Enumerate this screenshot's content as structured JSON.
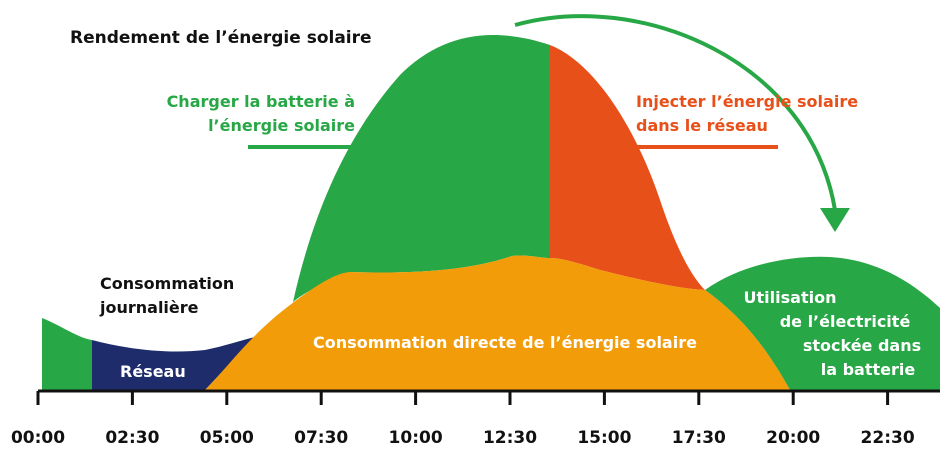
{
  "title": "Rendement de l’énergie solaire",
  "labels": {
    "charge_line1": "Charger la batterie à",
    "charge_line2": "l’énergie solaire",
    "inject_line1": "Injecter l’énergie solaire",
    "inject_line2": "dans le réseau",
    "consumption_line1": "Consommation",
    "consumption_line2": "journalière",
    "grid": "Réseau",
    "direct": "Consommation directe de l’énergie solaire",
    "usage_line1": "Utilisation",
    "usage_line2": "de l’électricité",
    "usage_line3": "stockée dans",
    "usage_line4": "la batterie"
  },
  "time_axis": {
    "ticks": [
      "00:00",
      "02:30",
      "05:00",
      "07:30",
      "10:00",
      "12:30",
      "15:00",
      "17:30",
      "20:00",
      "22:30"
    ]
  },
  "colors": {
    "green": "#27A745",
    "orange": "#F39C0A",
    "red": "#E8501A",
    "navy": "#1E2C6B",
    "dark": "#111111",
    "white": "#ffffff"
  }
}
